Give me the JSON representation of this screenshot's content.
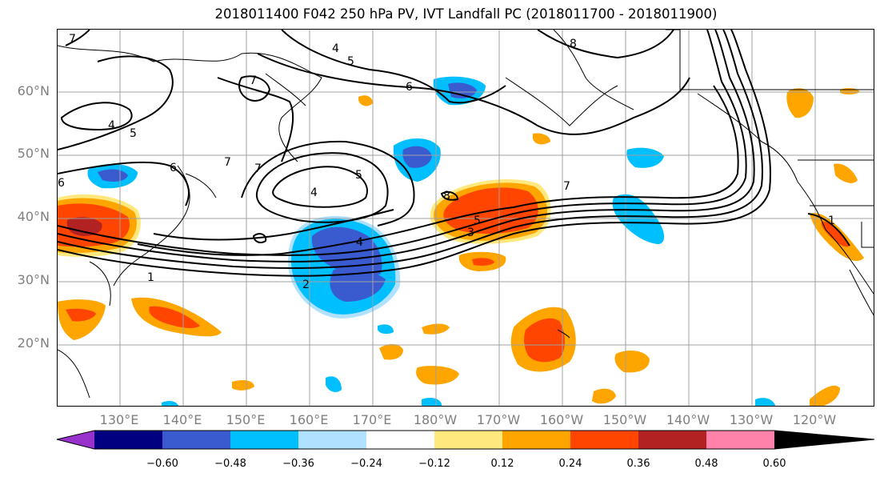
{
  "title": "2018011400 F042 250 hPa PV, IVT Landfall PC (2018011700 - 2018011900)",
  "map": {
    "lat_labels": [
      "60°N",
      "50°N",
      "40°N",
      "30°N",
      "20°N"
    ],
    "lon_labels": [
      "130°E",
      "140°E",
      "150°E",
      "160°E",
      "170°E",
      "180°W",
      "170°W",
      "160°W",
      "150°W",
      "140°W",
      "130°W",
      "120°W"
    ],
    "contour_labels": [
      "7",
      "4",
      "5",
      "6",
      "8",
      "7",
      "4",
      "5",
      "6",
      "7",
      "5",
      "4",
      "8",
      "7",
      "5",
      "3",
      "4",
      "2",
      "1",
      "6",
      "7",
      "1"
    ],
    "shading_colors": {
      "strong_negative": "#3a5bcf",
      "negative": "#00bfff",
      "weak_negative": "#b0e2ff",
      "weak_positive": "#ffe97f",
      "positive": "#ffa500",
      "strong_positive": "#ff4500",
      "very_strong_positive": "#b22222"
    }
  },
  "colorbar": {
    "ticks": [
      "−0.60",
      "−0.48",
      "−0.36",
      "−0.24",
      "−0.12",
      "0.12",
      "0.24",
      "0.36",
      "0.48",
      "0.60"
    ],
    "colors": [
      "#9932cc",
      "#000080",
      "#3a5bcf",
      "#00bfff",
      "#b0e2ff",
      "#ffffff",
      "#ffe97f",
      "#ffa500",
      "#ff4500",
      "#b22222",
      "#ff82ab"
    ]
  }
}
